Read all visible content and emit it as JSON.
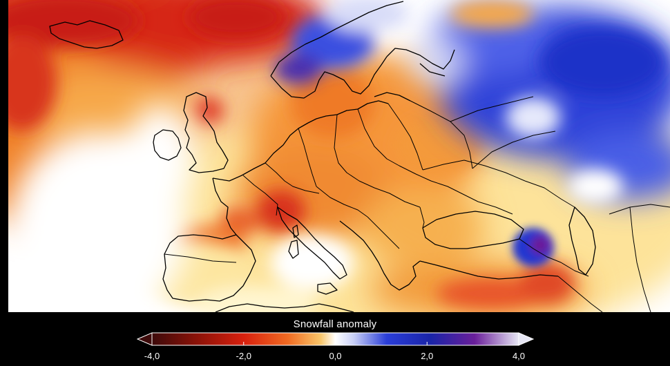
{
  "map": {
    "region": "Europe",
    "variable": "snowfall anomaly",
    "scale_colors": {
      "strong_negative": "#5a0a0a",
      "negative": "#d81e10",
      "mild_negative": "#f29a2e",
      "slight_negative": "#fbe58a",
      "neutral": "#ffffff",
      "positive": "#2a3ed8",
      "strong_positive": "#6a1f9a",
      "extreme_positive": "#d8d8f0"
    }
  },
  "legend": {
    "title": "Snowfall anomaly",
    "min": -4.0,
    "max": 4.0,
    "ticks": [
      {
        "value": -4.0,
        "label": "-4,0"
      },
      {
        "value": -2.0,
        "label": "-2,0"
      },
      {
        "value": 0.0,
        "label": "0,0"
      },
      {
        "value": 2.0,
        "label": "2,0"
      },
      {
        "value": 4.0,
        "label": "4,0"
      }
    ],
    "extend_min_icon": "triangle-left-icon",
    "extend_max_icon": "triangle-right-icon"
  }
}
